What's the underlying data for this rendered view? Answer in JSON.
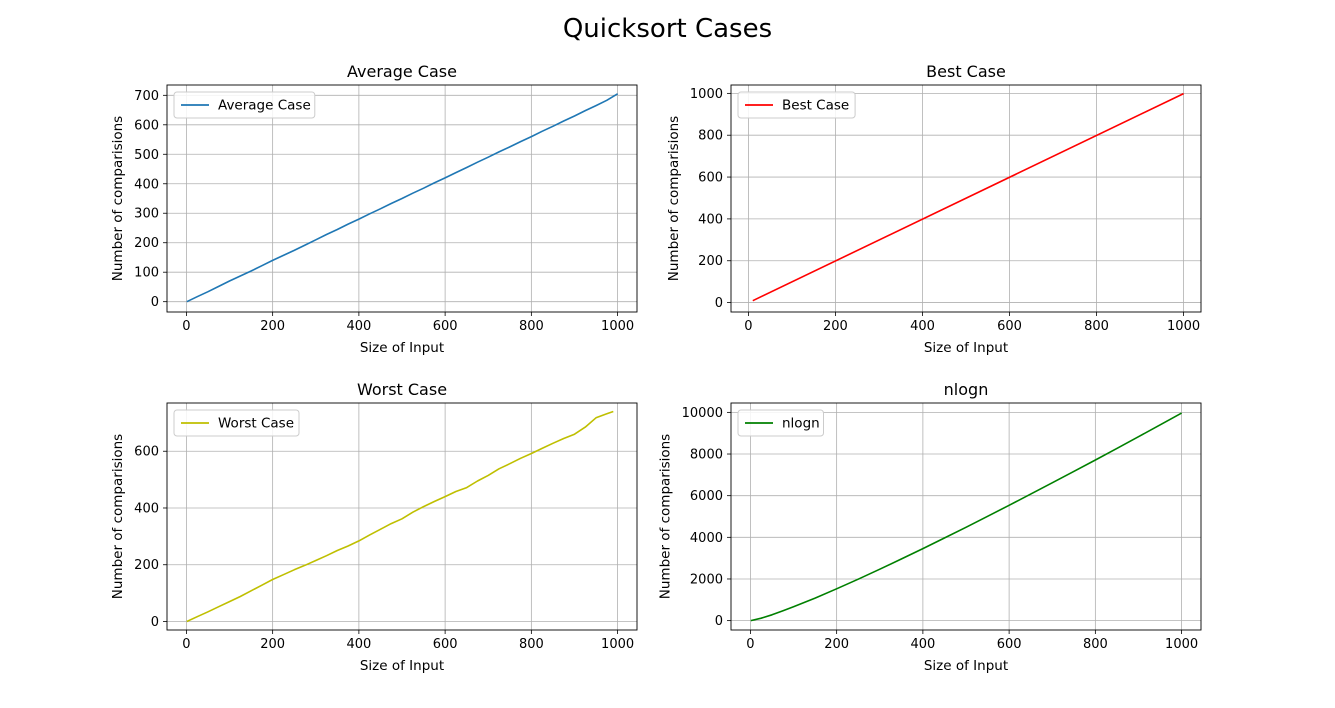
{
  "figure": {
    "suptitle": "Quicksort Cases"
  },
  "chart_data": [
    {
      "type": "line",
      "title": "Average Case",
      "xlabel": "Size of Input",
      "ylabel": "Number of comparisions",
      "xlim": [
        -45,
        1045
      ],
      "ylim": [
        -35,
        735
      ],
      "xticks": [
        0,
        200,
        400,
        600,
        800,
        1000
      ],
      "yticks": [
        0,
        100,
        200,
        300,
        400,
        500,
        600,
        700
      ],
      "grid": true,
      "legend": "upper-left",
      "series": [
        {
          "name": "Average Case",
          "color": "#1f77b4",
          "x": [
            1,
            25,
            50,
            75,
            100,
            125,
            150,
            175,
            200,
            225,
            250,
            275,
            300,
            325,
            350,
            375,
            400,
            425,
            450,
            475,
            500,
            525,
            550,
            575,
            600,
            625,
            650,
            675,
            700,
            725,
            750,
            775,
            800,
            825,
            850,
            875,
            900,
            925,
            950,
            975,
            1000
          ],
          "y": [
            0,
            17,
            34,
            52,
            70,
            87,
            104,
            122,
            140,
            157,
            174,
            192,
            210,
            228,
            245,
            263,
            280,
            298,
            315,
            333,
            350,
            368,
            385,
            403,
            420,
            438,
            455,
            473,
            490,
            508,
            525,
            543,
            560,
            578,
            595,
            613,
            630,
            648,
            665,
            683,
            705
          ]
        }
      ]
    },
    {
      "type": "line",
      "title": "Best Case",
      "xlabel": "Size of Input",
      "ylabel": "Number of comparisions",
      "xlim": [
        -40,
        1040
      ],
      "ylim": [
        -45,
        1040
      ],
      "xticks": [
        0,
        200,
        400,
        600,
        800,
        1000
      ],
      "yticks": [
        0,
        200,
        400,
        600,
        800,
        1000
      ],
      "grid": true,
      "legend": "upper-left",
      "series": [
        {
          "name": "Best Case",
          "color": "#ff0000",
          "x": [
            10,
            1000
          ],
          "y": [
            9,
            999
          ]
        }
      ]
    },
    {
      "type": "line",
      "title": "Worst Case",
      "xlabel": "Size of Input",
      "ylabel": "Number of comparisions",
      "xlim": [
        -45,
        1045
      ],
      "ylim": [
        -30,
        770
      ],
      "xticks": [
        0,
        200,
        400,
        600,
        800,
        1000
      ],
      "yticks": [
        0,
        200,
        400,
        600
      ],
      "grid": true,
      "legend": "upper-left",
      "series": [
        {
          "name": "Worst Case",
          "color": "#bfbf00",
          "x": [
            1,
            25,
            50,
            75,
            100,
            125,
            150,
            175,
            200,
            225,
            250,
            275,
            300,
            325,
            350,
            375,
            400,
            425,
            450,
            475,
            500,
            525,
            550,
            575,
            600,
            625,
            650,
            675,
            700,
            725,
            750,
            775,
            800,
            825,
            850,
            875,
            900,
            925,
            950,
            975,
            990
          ],
          "y": [
            0,
            17,
            34,
            52,
            70,
            88,
            108,
            128,
            148,
            165,
            182,
            198,
            215,
            232,
            250,
            266,
            284,
            305,
            325,
            345,
            362,
            385,
            405,
            423,
            440,
            458,
            472,
            495,
            515,
            538,
            556,
            575,
            592,
            610,
            628,
            645,
            660,
            685,
            718,
            732,
            740
          ]
        }
      ]
    },
    {
      "type": "line",
      "title": "nlogn",
      "xlabel": "Size of Input",
      "ylabel": "Number of comparisions",
      "xlim": [
        -45,
        1045
      ],
      "ylim": [
        -450,
        10450
      ],
      "xticks": [
        0,
        200,
        400,
        600,
        800,
        1000
      ],
      "yticks": [
        0,
        2000,
        4000,
        6000,
        8000,
        10000
      ],
      "grid": true,
      "legend": "upper-left",
      "series": [
        {
          "name": "nlogn",
          "color": "#008000",
          "x": [
            1,
            25,
            50,
            75,
            100,
            150,
            200,
            250,
            300,
            350,
            400,
            450,
            500,
            550,
            600,
            650,
            700,
            750,
            800,
            850,
            900,
            950,
            1000
          ],
          "y": [
            0,
            116,
            282,
            468,
            664,
            1084,
            1529,
            1991,
            2469,
            2958,
            3458,
            3966,
            4483,
            5008,
            5537,
            6074,
            6616,
            7164,
            7715,
            8272,
            8832,
            9398,
            9966
          ]
        }
      ]
    }
  ]
}
